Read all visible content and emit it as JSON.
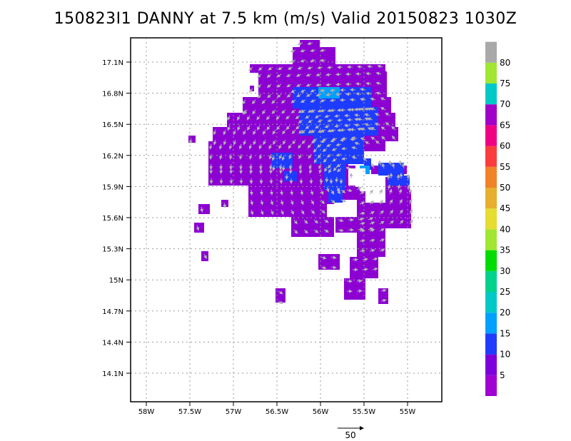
{
  "title": "150823I1 DANNY at 7.5 km (m/s) Valid 20150823  1030Z",
  "lon_ticks": [
    "58W",
    "57.5W",
    "57W",
    "56.5W",
    "56W",
    "55.5W",
    "55W"
  ],
  "lat_ticks": [
    "17.1N",
    "16.8N",
    "16.5N",
    "16.2N",
    "15.9N",
    "15.6N",
    "15.3N",
    "15N",
    "14.7N",
    "14.4N",
    "14.1N"
  ],
  "colorbar": {
    "labels": [
      "5",
      "10",
      "15",
      "20",
      "25",
      "30",
      "35",
      "40",
      "45",
      "50",
      "55",
      "60",
      "65",
      "70",
      "75",
      "80"
    ],
    "colors": [
      "#a000d2",
      "#7d00dc",
      "#1e3cff",
      "#00a0ff",
      "#00c8c8",
      "#00d28c",
      "#00dc00",
      "#a0e632",
      "#e6dc32",
      "#e6af2d",
      "#f08228",
      "#fa3c3c",
      "#f00082",
      "#a000c8",
      "#00c8c8",
      "#a0e632",
      "#a9a9a9"
    ]
  },
  "reference_vector": {
    "label": "50"
  },
  "colors": {
    "dominant": "#8c00d2",
    "secondary": "#1e3cff",
    "core": "#00a0ff",
    "vector": "#b4b4b4"
  }
}
